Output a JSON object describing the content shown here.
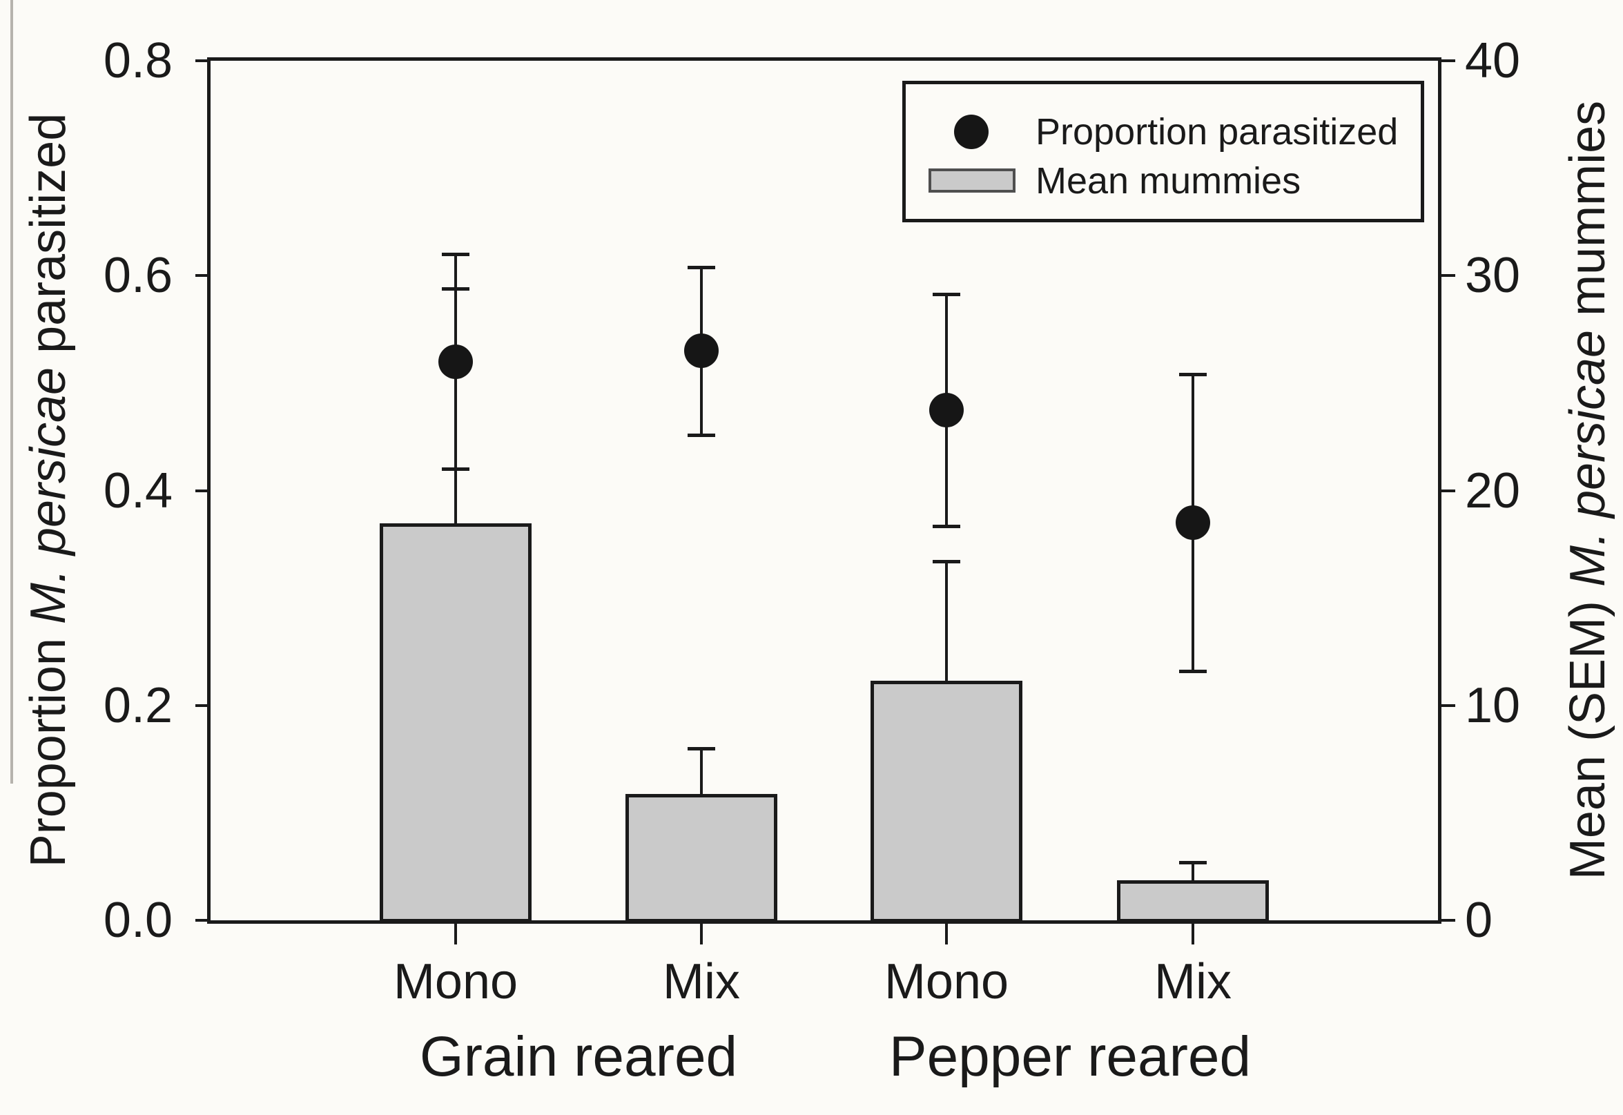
{
  "chart_data": {
    "type": "bar",
    "subtype": "grouped bars (right axis) with overlaid mean points and SEM error bars (left axis), dual y-axes",
    "categories": [
      "Mono",
      "Mix",
      "Mono",
      "Mix"
    ],
    "series": [
      {
        "name": "Proportion parasitized",
        "axis": "left",
        "marker": "filled-circle",
        "values": [
          0.52,
          0.53,
          0.475,
          0.37
        ],
        "sem": [
          0.1,
          0.078,
          0.108,
          0.138
        ]
      },
      {
        "name": "Mean mummies",
        "axis": "right",
        "marker": "gray-bar",
        "values": [
          18.4,
          5.8,
          11.1,
          1.8
        ],
        "sem": [
          11.0,
          2.2,
          5.6,
          0.9
        ]
      }
    ],
    "left_axis": {
      "label": "Proportion M. persicae parasitized",
      "label_parts": {
        "pre": "Proportion ",
        "italic": "M. persicae",
        "post": " parasitized"
      },
      "ticks": [
        "0.0",
        "0.2",
        "0.4",
        "0.6",
        "0.8"
      ],
      "range": [
        0,
        0.8
      ]
    },
    "right_axis": {
      "label": "Mean (SEM) M. persicae mummies",
      "label_parts": {
        "pre": "Mean (SEM) ",
        "italic": "M. persicae",
        "post": " mummies"
      },
      "ticks": [
        "0",
        "10",
        "20",
        "30",
        "40"
      ],
      "range": [
        0,
        40
      ]
    },
    "x_axis": {
      "tick_labels": [
        "Mono",
        "Mix",
        "Mono",
        "Mix"
      ],
      "group_labels": [
        "Grain reared",
        "Pepper reared"
      ]
    },
    "legend": [
      {
        "marker": "circle",
        "label": "Proportion parasitized"
      },
      {
        "marker": "bar",
        "label": "Mean mummies"
      }
    ],
    "grid": false,
    "legend_position": "top-right-inside",
    "colors": {
      "background": "#fcfbf7",
      "ink": "#1a1a1a",
      "bar_fill": "#cacaca",
      "marker": "#161616",
      "legend_swatch_border": "#4f4f4f"
    }
  }
}
